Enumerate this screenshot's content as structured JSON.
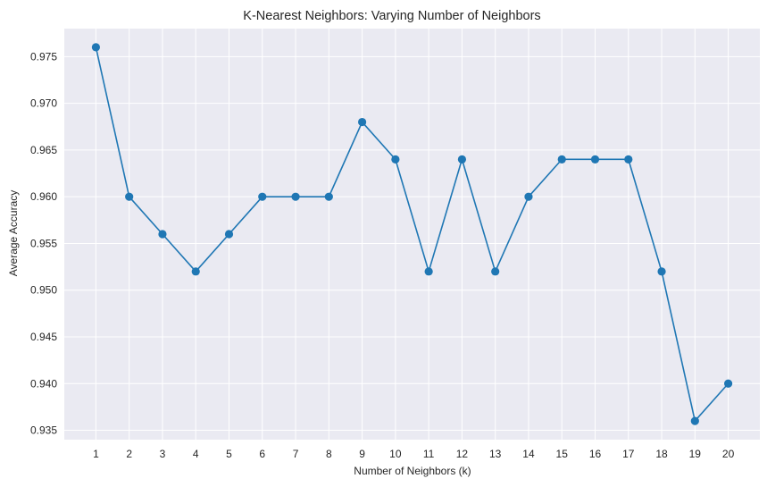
{
  "chart_data": {
    "type": "line",
    "title": "K-Nearest Neighbors: Varying Number of Neighbors",
    "xlabel": "Number of Neighbors (k)",
    "ylabel": "Average Accuracy",
    "x": [
      1,
      2,
      3,
      4,
      5,
      6,
      7,
      8,
      9,
      10,
      11,
      12,
      13,
      14,
      15,
      16,
      17,
      18,
      19,
      20
    ],
    "series": [
      {
        "values": [
          0.976,
          0.96,
          0.956,
          0.952,
          0.956,
          0.96,
          0.96,
          0.96,
          0.968,
          0.964,
          0.952,
          0.964,
          0.952,
          0.96,
          0.964,
          0.964,
          0.964,
          0.952,
          0.936,
          0.94
        ],
        "color": "#1f77b4",
        "marker": "circle"
      }
    ],
    "xlim": [
      0.05,
      20.95
    ],
    "ylim": [
      0.934,
      0.978
    ],
    "xticks": [
      1,
      2,
      3,
      4,
      5,
      6,
      7,
      8,
      9,
      10,
      11,
      12,
      13,
      14,
      15,
      16,
      17,
      18,
      19,
      20
    ],
    "xtick_labels": [
      "1",
      "2",
      "3",
      "4",
      "5",
      "6",
      "7",
      "8",
      "9",
      "10",
      "11",
      "12",
      "13",
      "14",
      "15",
      "16",
      "17",
      "18",
      "19",
      "20"
    ],
    "yticks": [
      0.935,
      0.94,
      0.945,
      0.95,
      0.955,
      0.96,
      0.965,
      0.97,
      0.975
    ],
    "ytick_labels": [
      "0.935",
      "0.940",
      "0.945",
      "0.950",
      "0.955",
      "0.960",
      "0.965",
      "0.970",
      "0.975"
    ],
    "grid": true,
    "legend": "none",
    "background_color": "#eaeaf2",
    "grid_color": "#ffffff"
  }
}
